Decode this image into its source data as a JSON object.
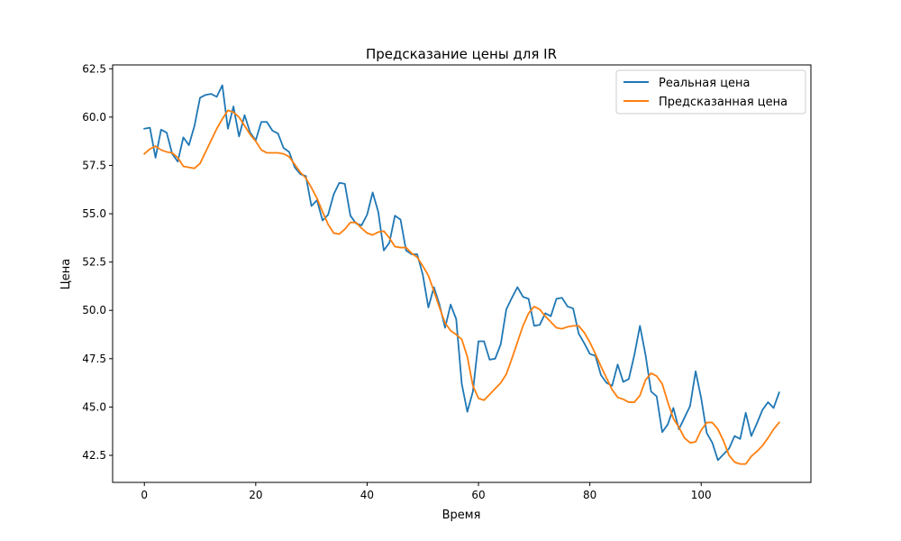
{
  "chart_data": {
    "type": "line",
    "title": "Предсказание цены для IR",
    "xlabel": "Время",
    "ylabel": "Цена",
    "xlim": [
      -5.7,
      119.7
    ],
    "ylim": [
      41.1,
      62.7
    ],
    "xticks": [
      0,
      20,
      40,
      60,
      80,
      100
    ],
    "yticks": [
      42.5,
      45.0,
      47.5,
      50.0,
      52.5,
      55.0,
      57.5,
      60.0,
      62.5
    ],
    "ytick_labels": [
      "42.5",
      "45.0",
      "47.5",
      "50.0",
      "52.5",
      "55.0",
      "57.5",
      "60.0",
      "62.5"
    ],
    "grid": false,
    "legend_position": "top-right",
    "colors": {
      "real": "#1f77b4",
      "predicted": "#ff7f0e"
    },
    "series": [
      {
        "name": "Реальная цена",
        "color": "#1f77b4",
        "values": [
          59.4,
          59.45,
          57.9,
          59.35,
          59.2,
          58.1,
          57.7,
          58.95,
          58.55,
          59.55,
          61.0,
          61.15,
          61.2,
          61.05,
          61.65,
          59.4,
          60.55,
          59.0,
          60.1,
          59.2,
          58.8,
          59.75,
          59.75,
          59.3,
          59.15,
          58.4,
          58.2,
          57.4,
          57.05,
          56.95,
          55.4,
          55.7,
          54.65,
          54.95,
          56.0,
          56.6,
          56.55,
          54.9,
          54.5,
          54.4,
          54.95,
          56.1,
          55.1,
          53.1,
          53.5,
          54.9,
          54.7,
          53.1,
          52.9,
          52.9,
          51.85,
          50.15,
          51.2,
          50.3,
          49.1,
          50.3,
          49.55,
          46.2,
          44.75,
          45.8,
          48.4,
          48.4,
          47.45,
          47.5,
          48.25,
          50.05,
          50.65,
          51.2,
          50.7,
          50.6,
          49.2,
          49.25,
          49.85,
          49.7,
          50.6,
          50.65,
          50.2,
          50.1,
          48.8,
          48.3,
          47.75,
          47.65,
          46.65,
          46.25,
          46.1,
          47.2,
          46.3,
          46.45,
          47.7,
          49.2,
          47.7,
          45.8,
          45.55,
          43.7,
          44.1,
          44.95,
          43.85,
          44.45,
          45.05,
          46.85,
          45.45,
          43.65,
          43.15,
          42.25,
          42.55,
          42.85,
          43.5,
          43.35,
          44.7,
          43.5,
          44.15,
          44.85,
          45.25,
          44.95,
          45.75
        ]
      },
      {
        "name": "Предсказанная цена",
        "color": "#ff7f0e",
        "values": [
          58.1,
          58.35,
          58.5,
          58.3,
          58.2,
          58.15,
          57.9,
          57.45,
          57.4,
          57.35,
          57.6,
          58.2,
          58.8,
          59.4,
          59.9,
          60.35,
          60.25,
          60.0,
          59.55,
          59.1,
          58.75,
          58.3,
          58.15,
          58.15,
          58.15,
          58.1,
          57.95,
          57.55,
          57.15,
          56.85,
          56.35,
          55.8,
          55.1,
          54.45,
          54.0,
          53.95,
          54.2,
          54.55,
          54.55,
          54.25,
          54.0,
          53.9,
          54.05,
          54.1,
          53.75,
          53.3,
          53.25,
          53.25,
          52.95,
          52.75,
          52.3,
          51.8,
          51.0,
          50.15,
          49.35,
          48.95,
          48.75,
          48.5,
          47.6,
          46.1,
          45.45,
          45.35,
          45.65,
          45.95,
          46.25,
          46.7,
          47.5,
          48.35,
          49.2,
          49.85,
          50.2,
          50.05,
          49.7,
          49.4,
          49.1,
          49.05,
          49.15,
          49.2,
          49.2,
          48.85,
          48.35,
          47.75,
          47.1,
          46.5,
          45.9,
          45.5,
          45.4,
          45.25,
          45.25,
          45.6,
          46.4,
          46.75,
          46.6,
          46.2,
          45.25,
          44.4,
          43.95,
          43.4,
          43.15,
          43.2,
          43.8,
          44.2,
          44.2,
          43.85,
          43.25,
          42.5,
          42.15,
          42.05,
          42.05,
          42.45,
          42.7,
          43.0,
          43.4,
          43.85,
          44.2
        ]
      }
    ]
  }
}
